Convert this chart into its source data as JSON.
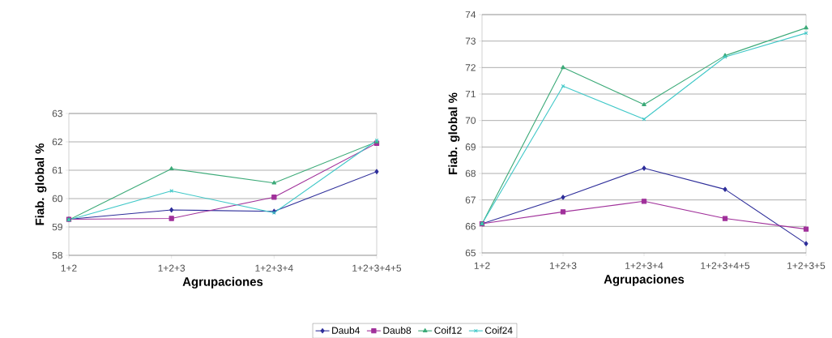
{
  "chart_data": [
    {
      "type": "line",
      "xlabel": "Agrupaciones",
      "ylabel": "Fiab. global %",
      "categories": [
        "1+2",
        "1+2+3",
        "1+2+3+4",
        "1+2+3+4+5"
      ],
      "ylim": [
        58,
        63
      ],
      "yticks": [
        58,
        59,
        60,
        61,
        62,
        63
      ],
      "grid": "y",
      "line_style": "solid",
      "series": [
        {
          "color": "#2e2e9a",
          "marker": "diamond",
          "values": [
            59.27,
            59.6,
            59.55,
            60.95
          ]
        },
        {
          "color": "#a0309a",
          "marker": "square",
          "values": [
            59.27,
            59.3,
            60.05,
            61.95
          ]
        },
        {
          "color": "#3caa78",
          "marker": "triangle",
          "values": [
            59.25,
            61.05,
            60.55,
            62.0
          ]
        },
        {
          "color": "#40c8c8",
          "marker": "cross",
          "values": [
            59.25,
            60.27,
            59.5,
            62.05
          ]
        }
      ]
    },
    {
      "type": "line",
      "xlabel": "Agrupaciones",
      "ylabel": "Fiab. global %",
      "categories": [
        "1+2",
        "1+2+3",
        "1+2+3+4",
        "1+2+3+4+5",
        "1+2+3+5"
      ],
      "ylim": [
        65,
        74
      ],
      "yticks": [
        65,
        66,
        67,
        68,
        69,
        70,
        71,
        72,
        73,
        74
      ],
      "grid": "y",
      "legend": "bottom",
      "line_style": "solid",
      "series": [
        {
          "name": "Daub4",
          "color": "#2e2e9a",
          "marker": "diamond",
          "values": [
            66.1,
            67.1,
            68.2,
            67.4,
            65.35
          ]
        },
        {
          "name": "Daub8",
          "color": "#a0309a",
          "marker": "square",
          "values": [
            66.1,
            66.55,
            66.95,
            66.3,
            65.9
          ]
        },
        {
          "name": "Coif12",
          "color": "#3caa78",
          "marker": "triangle",
          "values": [
            66.1,
            72.0,
            70.6,
            72.45,
            73.5
          ]
        },
        {
          "name": "Coif24",
          "color": "#40c8c8",
          "marker": "cross",
          "values": [
            66.1,
            71.3,
            70.05,
            72.4,
            73.3
          ]
        }
      ]
    }
  ]
}
